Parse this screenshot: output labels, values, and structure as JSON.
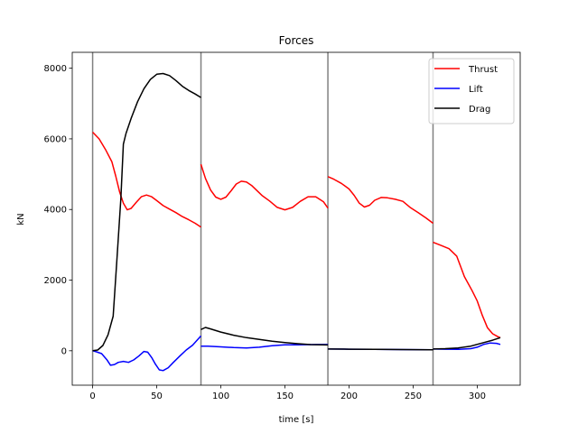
{
  "chart_data": {
    "type": "line",
    "title": "Forces",
    "xlabel": "time [s]",
    "ylabel": "kN",
    "xlim": [
      -15.9,
      333.5
    ],
    "ylim": [
      -975,
      8450
    ],
    "x_ticks": [
      0,
      50,
      100,
      150,
      200,
      250,
      300
    ],
    "y_ticks": [
      0,
      2000,
      4000,
      6000,
      8000
    ],
    "grid": false,
    "legend_position": "top-right",
    "phase_boundaries": [
      0,
      84.5,
      183.5,
      265.5
    ],
    "phase_line_color": "#808080",
    "series": [
      {
        "name": "Thrust",
        "color": "#ff0000",
        "segments": [
          [
            [
              0,
              6190
            ],
            [
              5,
              6000
            ],
            [
              10,
              5700
            ],
            [
              15,
              5350
            ],
            [
              18,
              4950
            ],
            [
              21,
              4500
            ],
            [
              24,
              4180
            ],
            [
              27,
              3990
            ],
            [
              30,
              4030
            ],
            [
              34,
              4200
            ],
            [
              38,
              4360
            ],
            [
              42,
              4410
            ],
            [
              46,
              4360
            ],
            [
              50,
              4250
            ],
            [
              55,
              4110
            ],
            [
              60,
              4010
            ],
            [
              65,
              3910
            ],
            [
              70,
              3800
            ],
            [
              75,
              3710
            ],
            [
              80,
              3610
            ],
            [
              84.5,
              3500
            ]
          ],
          [
            [
              84.5,
              5280
            ],
            [
              88,
              4880
            ],
            [
              92,
              4550
            ],
            [
              96,
              4350
            ],
            [
              100,
              4290
            ],
            [
              104,
              4350
            ],
            [
              108,
              4530
            ],
            [
              112,
              4720
            ],
            [
              116,
              4800
            ],
            [
              120,
              4780
            ],
            [
              124,
              4680
            ],
            [
              128,
              4540
            ],
            [
              132,
              4400
            ],
            [
              138,
              4240
            ],
            [
              144,
              4060
            ],
            [
              150,
              3990
            ],
            [
              156,
              4060
            ],
            [
              162,
              4230
            ],
            [
              168,
              4360
            ],
            [
              174,
              4360
            ],
            [
              180,
              4220
            ],
            [
              183.5,
              4040
            ]
          ],
          [
            [
              183.5,
              4930
            ],
            [
              188,
              4860
            ],
            [
              194,
              4740
            ],
            [
              200,
              4580
            ],
            [
              204,
              4400
            ],
            [
              208,
              4180
            ],
            [
              212,
              4070
            ],
            [
              216,
              4120
            ],
            [
              220,
              4260
            ],
            [
              225,
              4340
            ],
            [
              230,
              4330
            ],
            [
              236,
              4290
            ],
            [
              242,
              4230
            ],
            [
              248,
              4050
            ],
            [
              254,
              3910
            ],
            [
              260,
              3760
            ],
            [
              265.5,
              3610
            ]
          ],
          [
            [
              265.5,
              3070
            ],
            [
              272,
              2980
            ],
            [
              278,
              2890
            ],
            [
              284,
              2680
            ],
            [
              290,
              2100
            ],
            [
              296,
              1700
            ],
            [
              300,
              1410
            ],
            [
              304,
              1000
            ],
            [
              308,
              650
            ],
            [
              312,
              480
            ],
            [
              316,
              400
            ],
            [
              318,
              370
            ]
          ]
        ]
      },
      {
        "name": "Lift",
        "color": "#0000ff",
        "segments": [
          [
            [
              0,
              0
            ],
            [
              3,
              -30
            ],
            [
              7,
              -80
            ],
            [
              11,
              -250
            ],
            [
              14,
              -410
            ],
            [
              17,
              -390
            ],
            [
              20,
              -330
            ],
            [
              24,
              -300
            ],
            [
              28,
              -330
            ],
            [
              32,
              -260
            ],
            [
              36,
              -150
            ],
            [
              40,
              -20
            ],
            [
              43,
              -40
            ],
            [
              46,
              -190
            ],
            [
              49,
              -380
            ],
            [
              52,
              -540
            ],
            [
              55,
              -560
            ],
            [
              59,
              -480
            ],
            [
              63,
              -330
            ],
            [
              68,
              -150
            ],
            [
              73,
              20
            ],
            [
              78,
              160
            ],
            [
              84.5,
              420
            ]
          ],
          [
            [
              84.5,
              130
            ],
            [
              90,
              130
            ],
            [
              100,
              110
            ],
            [
              110,
              90
            ],
            [
              120,
              80
            ],
            [
              130,
              100
            ],
            [
              140,
              140
            ],
            [
              150,
              170
            ],
            [
              160,
              170
            ],
            [
              170,
              175
            ],
            [
              183.5,
              180
            ]
          ],
          [
            [
              183.5,
              50
            ],
            [
              200,
              45
            ],
            [
              220,
              40
            ],
            [
              240,
              35
            ],
            [
              265.5,
              30
            ]
          ],
          [
            [
              265.5,
              50
            ],
            [
              275,
              45
            ],
            [
              285,
              40
            ],
            [
              295,
              60
            ],
            [
              300,
              100
            ],
            [
              305,
              180
            ],
            [
              310,
              220
            ],
            [
              315,
              210
            ],
            [
              318,
              180
            ]
          ]
        ]
      },
      {
        "name": "Drag",
        "color": "#000000",
        "segments": [
          [
            [
              0,
              0
            ],
            [
              4,
              20
            ],
            [
              8,
              150
            ],
            [
              12,
              450
            ],
            [
              16,
              980
            ],
            [
              19,
              2600
            ],
            [
              22,
              4300
            ],
            [
              24,
              5850
            ],
            [
              26,
              6150
            ],
            [
              30,
              6580
            ],
            [
              35,
              7050
            ],
            [
              40,
              7420
            ],
            [
              45,
              7680
            ],
            [
              50,
              7830
            ],
            [
              55,
              7850
            ],
            [
              60,
              7790
            ],
            [
              65,
              7650
            ],
            [
              70,
              7490
            ],
            [
              75,
              7370
            ],
            [
              80,
              7270
            ],
            [
              84.5,
              7170
            ]
          ],
          [
            [
              84.5,
              600
            ],
            [
              88,
              660
            ],
            [
              92,
              620
            ],
            [
              100,
              530
            ],
            [
              110,
              440
            ],
            [
              120,
              370
            ],
            [
              130,
              320
            ],
            [
              140,
              270
            ],
            [
              150,
              230
            ],
            [
              160,
              200
            ],
            [
              170,
              175
            ],
            [
              183.5,
              165
            ]
          ],
          [
            [
              183.5,
              50
            ],
            [
              200,
              45
            ],
            [
              220,
              40
            ],
            [
              240,
              35
            ],
            [
              265.5,
              30
            ]
          ],
          [
            [
              265.5,
              50
            ],
            [
              275,
              60
            ],
            [
              285,
              80
            ],
            [
              295,
              130
            ],
            [
              305,
              230
            ],
            [
              312,
              300
            ],
            [
              318,
              370
            ]
          ]
        ]
      }
    ]
  }
}
